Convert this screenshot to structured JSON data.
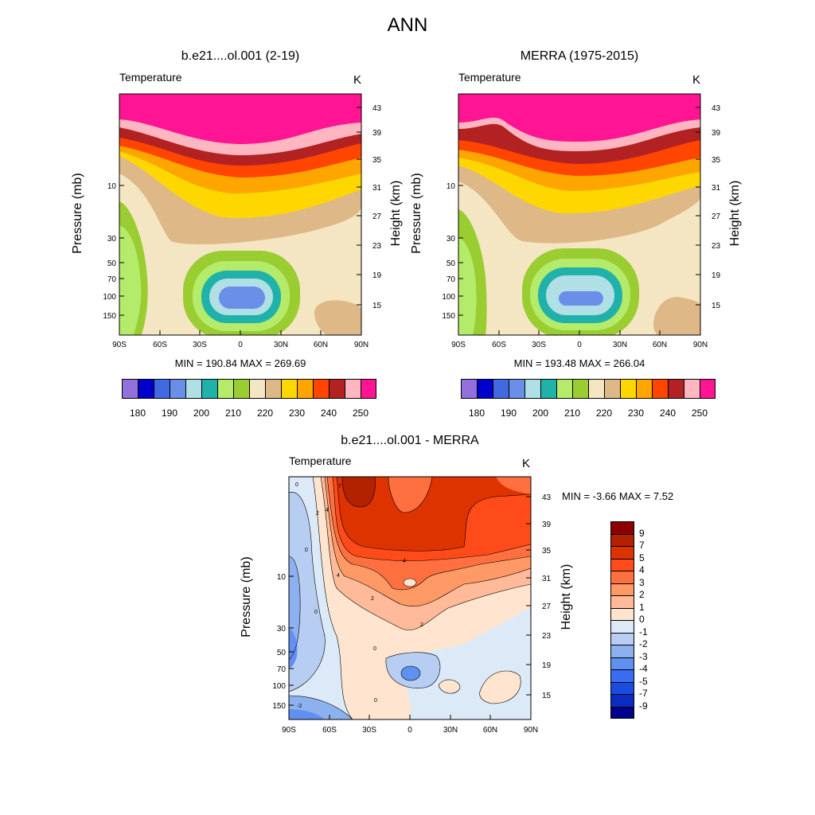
{
  "figure": {
    "title": "ANN"
  },
  "colors": {
    "abs_levels": [
      "#9370DB",
      "#0000CD",
      "#4169E1",
      "#6A8FE8",
      "#B0E0E6",
      "#20B2AA",
      "#B5EB6A",
      "#9ACD32",
      "#F5E6C3",
      "#DEB887",
      "#FFD700",
      "#FFA500",
      "#FF4500",
      "#B22222",
      "#FFB6C1",
      "#FF1493"
    ],
    "diff_levels": [
      "#8B0000",
      "#B22200",
      "#DD3300",
      "#FF4A1A",
      "#FF7040",
      "#FF9966",
      "#FFBB99",
      "#FFE5CF",
      "#DCEAF8",
      "#B7CEF2",
      "#8CB1EE",
      "#6090F0",
      "#3A6CF0",
      "#1A4CE0",
      "#0A2CC0",
      "#00008B"
    ]
  },
  "top_left": {
    "title": "b.e21....ol.001 (2-19)",
    "variable": "Temperature",
    "unit": "K",
    "ylabel": "Pressure (mb)",
    "ylabel_right": "Height (km)",
    "minmax": "MIN = 190.84  MAX = 269.69"
  },
  "top_right": {
    "title": "MERRA (1975-2015)",
    "variable": "Temperature",
    "unit": "K",
    "ylabel": "Pressure (mb)",
    "ylabel_right": "Height (km)",
    "minmax": "MIN = 193.48  MAX = 266.04"
  },
  "bottom": {
    "title": "b.e21....ol.001 - MERRA",
    "variable": "Temperature",
    "unit": "K",
    "ylabel": "Pressure (mb)",
    "ylabel_right": "Height (km)",
    "minmax": "MIN =  -3.66  MAX =   7.52"
  },
  "abs_legend_labels": [
    "180",
    "190",
    "200",
    "210",
    "220",
    "230",
    "240",
    "250"
  ],
  "diff_legend_labels": [
    "9",
    "7",
    "5",
    "4",
    "3",
    "2",
    "1",
    "0",
    "-1",
    "-2",
    "-3",
    "-4",
    "-5",
    "-7",
    "-9"
  ],
  "chart_data": [
    {
      "type": "heatmap",
      "title": "b.e21....ol.001 (2-19)",
      "subtitle": "Temperature",
      "units": "K",
      "xlabel": "",
      "ylabel": "Pressure (mb)",
      "ylabel_right": "Height (km)",
      "x_ticks": [
        "90S",
        "60S",
        "30S",
        "0",
        "30N",
        "60N",
        "90N"
      ],
      "y_ticks": [
        "10",
        "30",
        "50",
        "70",
        "100",
        "150"
      ],
      "y_ticks_right": [
        "43",
        "39",
        "35",
        "31",
        "27",
        "23",
        "19",
        "15"
      ],
      "levels": [
        180,
        185,
        190,
        195,
        200,
        205,
        210,
        215,
        220,
        225,
        230,
        235,
        240,
        245,
        250,
        255
      ],
      "min": 190.84,
      "max": 269.69
    },
    {
      "type": "heatmap",
      "title": "MERRA (1975-2015)",
      "subtitle": "Temperature",
      "units": "K",
      "xlabel": "",
      "ylabel": "Pressure (mb)",
      "ylabel_right": "Height (km)",
      "x_ticks": [
        "90S",
        "60S",
        "30S",
        "0",
        "30N",
        "60N",
        "90N"
      ],
      "y_ticks": [
        "10",
        "30",
        "50",
        "70",
        "100",
        "150"
      ],
      "y_ticks_right": [
        "43",
        "39",
        "35",
        "31",
        "27",
        "23",
        "19",
        "15"
      ],
      "levels": [
        180,
        185,
        190,
        195,
        200,
        205,
        210,
        215,
        220,
        225,
        230,
        235,
        240,
        245,
        250,
        255
      ],
      "min": 193.48,
      "max": 266.04
    },
    {
      "type": "heatmap",
      "title": "b.e21....ol.001 - MERRA",
      "subtitle": "Temperature",
      "units": "K",
      "xlabel": "",
      "ylabel": "Pressure (mb)",
      "ylabel_right": "Height (km)",
      "x_ticks": [
        "90S",
        "60S",
        "30S",
        "0",
        "30N",
        "60N",
        "90N"
      ],
      "y_ticks": [
        "10",
        "30",
        "50",
        "70",
        "100",
        "150"
      ],
      "y_ticks_right": [
        "43",
        "39",
        "35",
        "31",
        "27",
        "23",
        "19",
        "15"
      ],
      "contour_labels": [
        "0",
        "2",
        "4",
        "4",
        "2",
        "2",
        "0",
        "0",
        "0",
        "-2",
        "7",
        "4",
        "0"
      ],
      "levels": [
        -9,
        -7,
        -5,
        -4,
        -3,
        -2,
        -1,
        0,
        1,
        2,
        3,
        4,
        5,
        7,
        9
      ],
      "min": -3.66,
      "max": 7.52
    }
  ]
}
